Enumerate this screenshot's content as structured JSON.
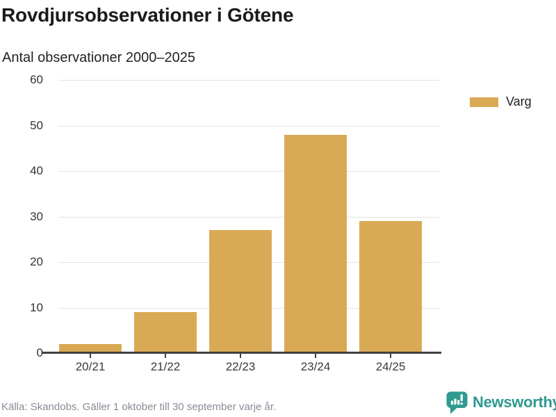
{
  "header": {
    "title": "Rovdjursobservationer i Götene",
    "subtitle": "Antal observationer 2000–2025"
  },
  "chart_data": {
    "type": "bar",
    "categories": [
      "20/21",
      "21/22",
      "22/23",
      "23/24",
      "24/25"
    ],
    "series": [
      {
        "name": "Varg",
        "values": [
          2,
          9,
          27,
          48,
          29
        ]
      }
    ],
    "title": "Rovdjursobservationer i Götene",
    "subtitle": "Antal observationer 2000–2025",
    "xlabel": "",
    "ylabel": "",
    "ylim": [
      0,
      60
    ],
    "yticks": [
      0,
      10,
      20,
      30,
      40,
      50,
      60
    ],
    "grid": "horizontal",
    "legend_position": "right",
    "bar_color": "#d9aa55",
    "grid_color": "#e4e4e4",
    "axis_color": "#404040"
  },
  "legend": {
    "items": [
      {
        "label": "Varg",
        "color": "#d9aa55",
        "swatch_icon": "legend-swatch"
      }
    ]
  },
  "footer": {
    "source_note": "Källa: Skandobs. Gäller 1 oktober till 30 september varje år.",
    "brand_name": "Newsworthy",
    "brand_color": "#2f9a90",
    "brand_icon": "bar-chart-speech-bubble-icon"
  }
}
